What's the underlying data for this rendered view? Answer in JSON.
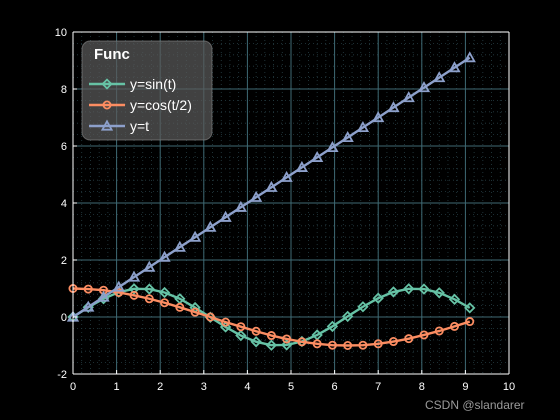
{
  "chart_data": {
    "type": "line",
    "xlim": [
      0,
      10
    ],
    "ylim": [
      -2,
      10
    ],
    "x_ticks": [
      "0",
      "1",
      "2",
      "3",
      "4",
      "5",
      "6",
      "7",
      "8",
      "9",
      "10"
    ],
    "y_ticks": [
      "-2",
      "0",
      "2",
      "4",
      "6",
      "8",
      "10"
    ],
    "grid": true,
    "minor_grid": true,
    "legend_title": "Func",
    "legend_position": "top-left",
    "x": [
      0,
      0.35,
      0.7,
      1.05,
      1.4,
      1.75,
      2.1,
      2.45,
      2.8,
      3.15,
      3.5,
      3.85,
      4.2,
      4.55,
      4.9,
      5.25,
      5.6,
      5.95,
      6.3,
      6.65,
      7.0,
      7.35,
      7.7,
      8.05,
      8.4,
      8.75,
      9.1
    ],
    "series": [
      {
        "name": "y=sin(t)",
        "color": "#66c2a5",
        "marker": "diamond",
        "values": [
          0.0,
          0.34,
          0.64,
          0.87,
          0.99,
          0.98,
          0.86,
          0.64,
          0.33,
          -0.01,
          -0.35,
          -0.65,
          -0.87,
          -0.99,
          -0.98,
          -0.86,
          -0.63,
          -0.33,
          0.02,
          0.36,
          0.66,
          0.88,
          0.99,
          0.98,
          0.85,
          0.62,
          0.32
        ]
      },
      {
        "name": "y=cos(t/2)",
        "color": "#fc8d62",
        "marker": "circle",
        "values": [
          1.0,
          0.98,
          0.94,
          0.86,
          0.76,
          0.64,
          0.5,
          0.34,
          0.17,
          0.0,
          -0.18,
          -0.34,
          -0.5,
          -0.65,
          -0.77,
          -0.87,
          -0.94,
          -0.99,
          -1.0,
          -0.99,
          -0.94,
          -0.86,
          -0.76,
          -0.63,
          -0.49,
          -0.33,
          -0.16
        ]
      },
      {
        "name": "y=t",
        "color": "#8da0cb",
        "marker": "triangle",
        "values": [
          0,
          0.35,
          0.7,
          1.05,
          1.4,
          1.75,
          2.1,
          2.45,
          2.8,
          3.15,
          3.5,
          3.85,
          4.2,
          4.55,
          4.9,
          5.25,
          5.6,
          5.95,
          6.3,
          6.65,
          7.0,
          7.35,
          7.7,
          8.05,
          8.4,
          8.75,
          9.1
        ]
      }
    ]
  },
  "watermark": "CSDN @slandarer",
  "colors": {
    "background": "#000000",
    "axis": "#ffffff",
    "grid": "#3f6a74",
    "minor_grid": "#263e44",
    "legend_bg": "#5a5a5a"
  }
}
